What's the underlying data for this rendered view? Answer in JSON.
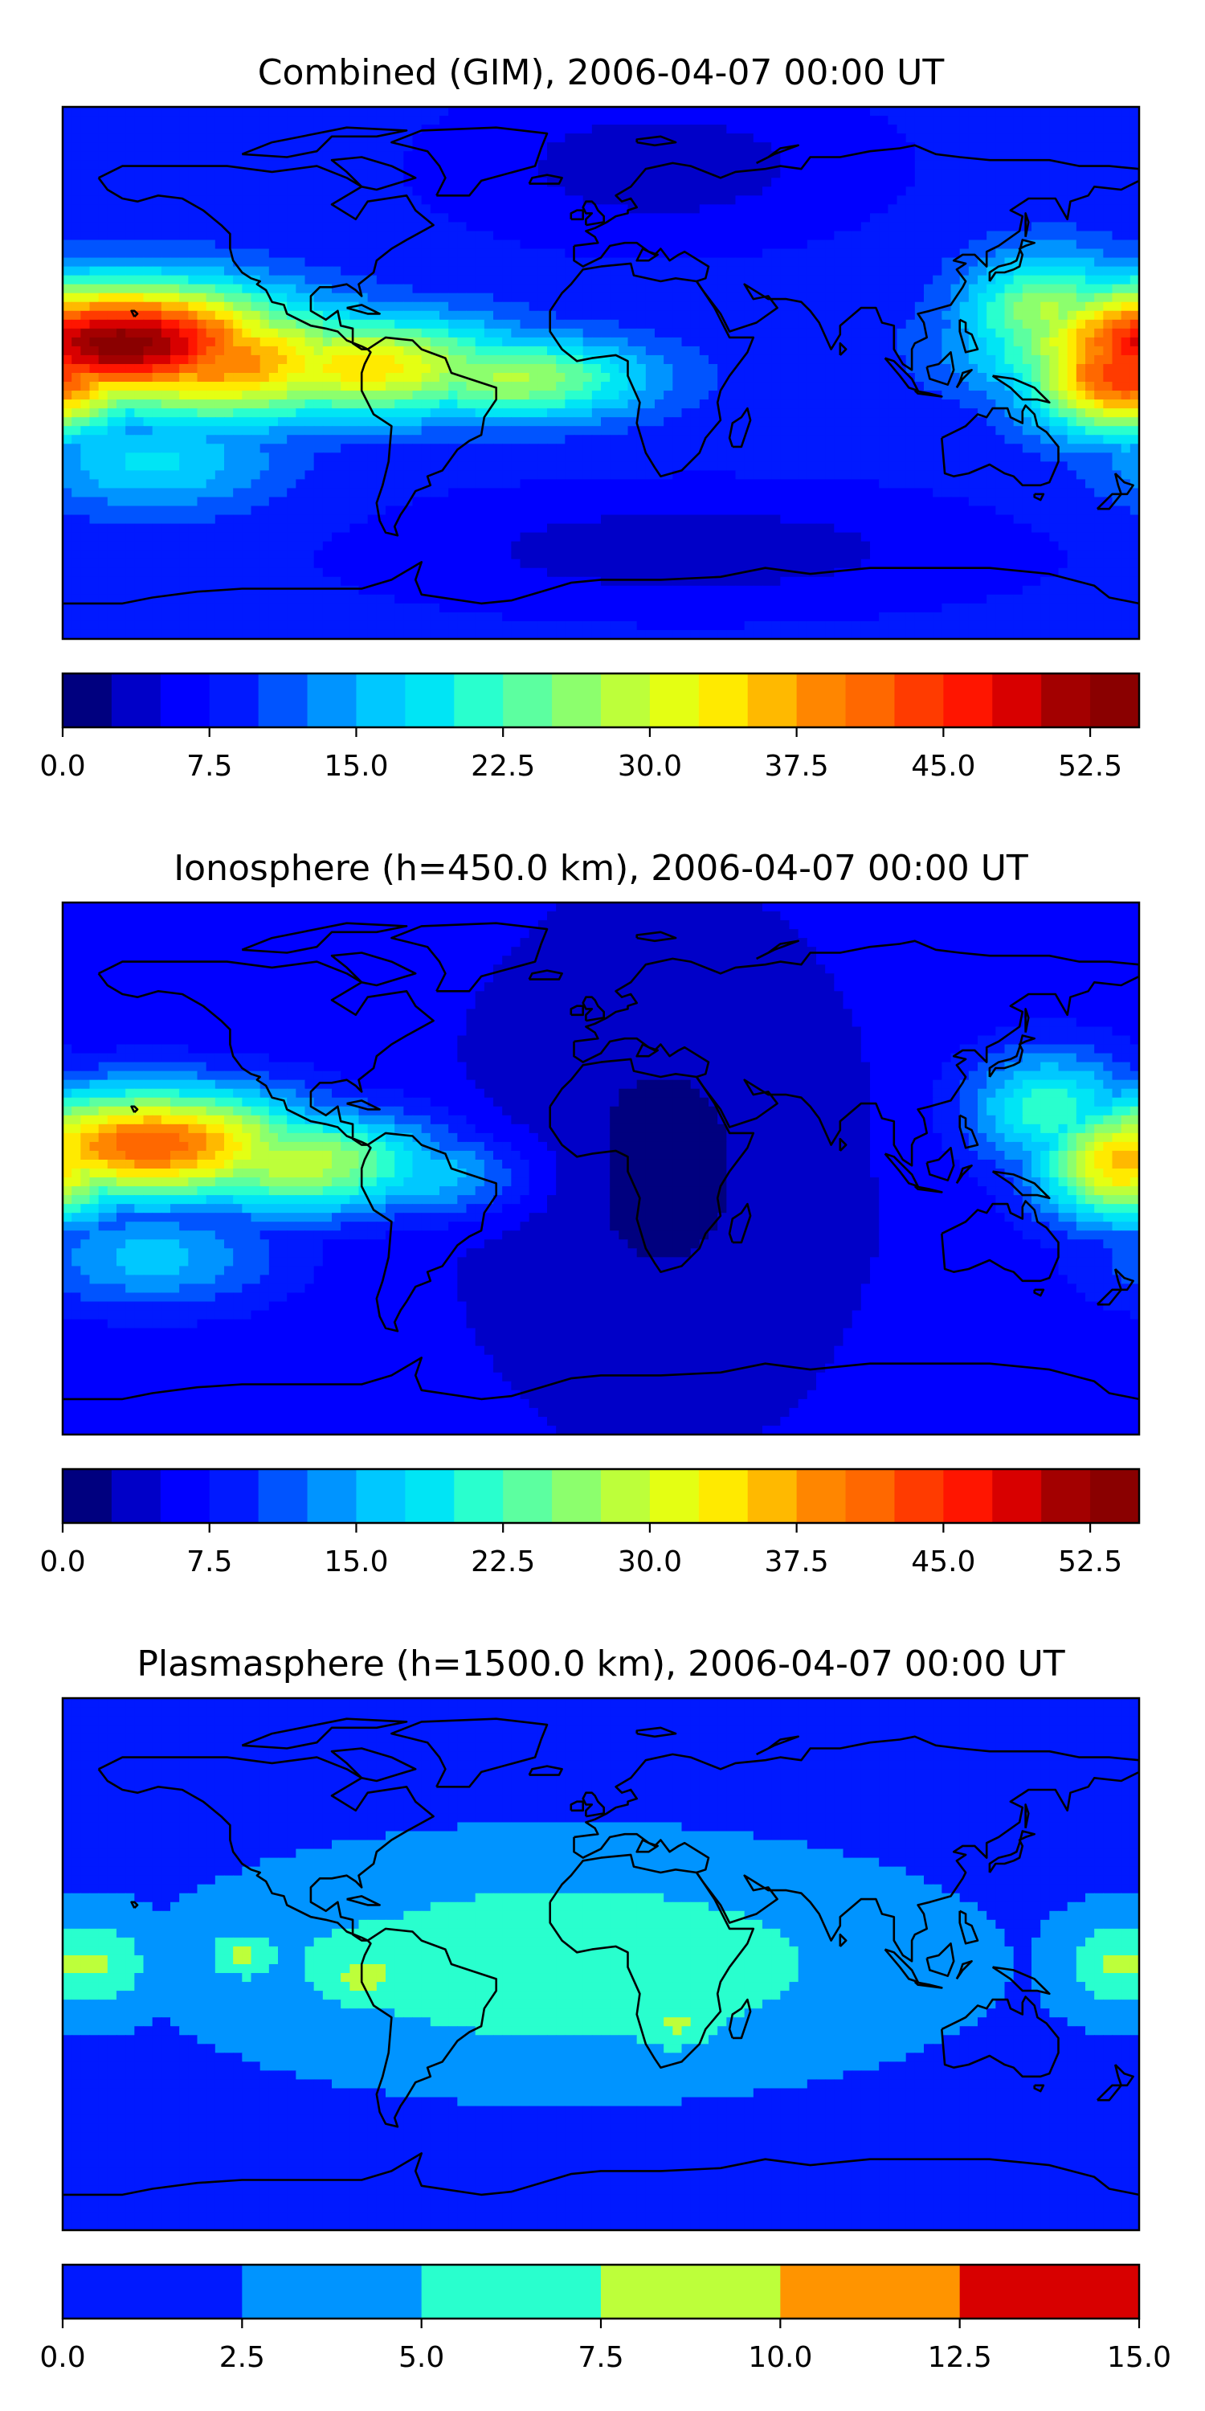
{
  "chart_data": [
    {
      "type": "heatmap",
      "title": "Combined (GIM), 2006-04-07 00:00 UT",
      "xlabel": "",
      "ylabel": "",
      "colorbar": {
        "levels": [
          0,
          2.5,
          5,
          7.5,
          10,
          12.5,
          15,
          17.5,
          20,
          22.5,
          25,
          27.5,
          30,
          32.5,
          35,
          37.5,
          40,
          42.5,
          45,
          47.5,
          50,
          52.5,
          55
        ],
        "tick_labels": [
          "0.0",
          "7.5",
          "15.0",
          "22.5",
          "30.0",
          "37.5",
          "45.0",
          "52.5"
        ],
        "colors": [
          "#00007f",
          "#0000c8",
          "#0000ff",
          "#0019ff",
          "#0054ff",
          "#0094ff",
          "#00c8ff",
          "#00e5f5",
          "#29ffce",
          "#5cffa0",
          "#8cff6d",
          "#bdff3a",
          "#e4ff13",
          "#ffea00",
          "#ffb900",
          "#ff8600",
          "#ff6800",
          "#ff3b00",
          "#ff1500",
          "#d80000",
          "#a30000",
          "#8a0000"
        ]
      },
      "features": [
        {
          "lon": -160,
          "lat": 10,
          "value": 54,
          "spread_lon": 40,
          "spread_lat": 14
        },
        {
          "lon": -130,
          "lat": 4,
          "value": 40,
          "spread_lon": 42,
          "spread_lat": 14
        },
        {
          "lon": -80,
          "lat": 2,
          "value": 34,
          "spread_lon": 38,
          "spread_lat": 12
        },
        {
          "lon": -30,
          "lat": -2,
          "value": 28,
          "spread_lon": 32,
          "spread_lat": 10
        },
        {
          "lon": 175,
          "lat": 0,
          "value": 45,
          "spread_lon": 22,
          "spread_lat": 14
        },
        {
          "lon": 150,
          "lat": 20,
          "value": 28,
          "spread_lon": 20,
          "spread_lat": 14
        },
        {
          "lon": -150,
          "lat": -30,
          "value": 18,
          "spread_lon": 30,
          "spread_lat": 12
        }
      ],
      "background_value": 8,
      "low_regions": [
        {
          "lon": 20,
          "lat": 70,
          "value": 3,
          "spread_lon": 40,
          "spread_lat": 15
        },
        {
          "lon": 30,
          "lat": -60,
          "value": 3,
          "spread_lon": 60,
          "spread_lat": 12
        }
      ]
    },
    {
      "type": "heatmap",
      "title": "Ionosphere  (h=450.0 km), 2006-04-07 00:00 UT",
      "xlabel": "",
      "ylabel": "",
      "colorbar": {
        "levels": [
          0,
          2.5,
          5,
          7.5,
          10,
          12.5,
          15,
          17.5,
          20,
          22.5,
          25,
          27.5,
          30,
          32.5,
          35,
          37.5,
          40,
          42.5,
          45,
          47.5,
          50,
          52.5,
          55
        ],
        "tick_labels": [
          "0.0",
          "7.5",
          "15.0",
          "22.5",
          "30.0",
          "37.5",
          "45.0",
          "52.5"
        ],
        "colors": [
          "#00007f",
          "#0000c8",
          "#0000ff",
          "#0019ff",
          "#0054ff",
          "#0094ff",
          "#00c8ff",
          "#00e5f5",
          "#29ffce",
          "#5cffa0",
          "#8cff6d",
          "#bdff3a",
          "#e4ff13",
          "#ffea00",
          "#ffb900",
          "#ff8600",
          "#ff6800",
          "#ff3b00",
          "#ff1500",
          "#d80000",
          "#a30000",
          "#8a0000"
        ]
      },
      "features": [
        {
          "lon": -150,
          "lat": 8,
          "value": 42,
          "spread_lon": 38,
          "spread_lat": 13
        },
        {
          "lon": -100,
          "lat": 2,
          "value": 30,
          "spread_lon": 38,
          "spread_lat": 12
        },
        {
          "lon": -50,
          "lat": -2,
          "value": 22,
          "spread_lon": 30,
          "spread_lat": 10
        },
        {
          "lon": 175,
          "lat": 2,
          "value": 36,
          "spread_lon": 20,
          "spread_lat": 14
        },
        {
          "lon": 150,
          "lat": 20,
          "value": 22,
          "spread_lon": 20,
          "spread_lat": 14
        },
        {
          "lon": -150,
          "lat": -30,
          "value": 16,
          "spread_lon": 30,
          "spread_lat": 12
        }
      ],
      "background_value": 6,
      "low_regions": [
        {
          "lon": 20,
          "lat": 0,
          "value": 2,
          "spread_lon": 45,
          "spread_lat": 60
        }
      ]
    },
    {
      "type": "heatmap",
      "title": "Plasmasphere (h=1500.0 km), 2006-04-07 00:00 UT",
      "xlabel": "",
      "ylabel": "",
      "colorbar": {
        "levels": [
          0,
          2.5,
          5,
          7.5,
          10,
          12.5,
          15
        ],
        "tick_labels": [
          "0.0",
          "2.5",
          "5.0",
          "7.5",
          "10.0",
          "12.5",
          "15.0"
        ],
        "colors": [
          "#0019ff",
          "#0094ff",
          "#29ffce",
          "#bdff3a",
          "#ff9400",
          "#d80000"
        ]
      },
      "features": [
        {
          "lon": -10,
          "lat": 0,
          "value": 7.0,
          "spread_lon": 80,
          "spread_lat": 26
        },
        {
          "lon": -75,
          "lat": 0,
          "value": 7.2,
          "spread_lon": 24,
          "spread_lat": 14
        },
        {
          "lon": -170,
          "lat": 0,
          "value": 6.5,
          "spread_lon": 18,
          "spread_lat": 14
        },
        {
          "lon": 175,
          "lat": 0,
          "value": 6.5,
          "spread_lon": 18,
          "spread_lat": 14
        }
      ],
      "background_value": 1.5,
      "peaks": [
        {
          "lon": -172,
          "lat": 0,
          "value": 8
        },
        {
          "lon": -120,
          "lat": 3,
          "value": 8
        },
        {
          "lon": -80,
          "lat": -5,
          "value": 8
        },
        {
          "lon": 172,
          "lat": 0,
          "value": 8
        },
        {
          "lon": 25,
          "lat": -20,
          "value": 8
        }
      ],
      "low_regions": []
    }
  ]
}
